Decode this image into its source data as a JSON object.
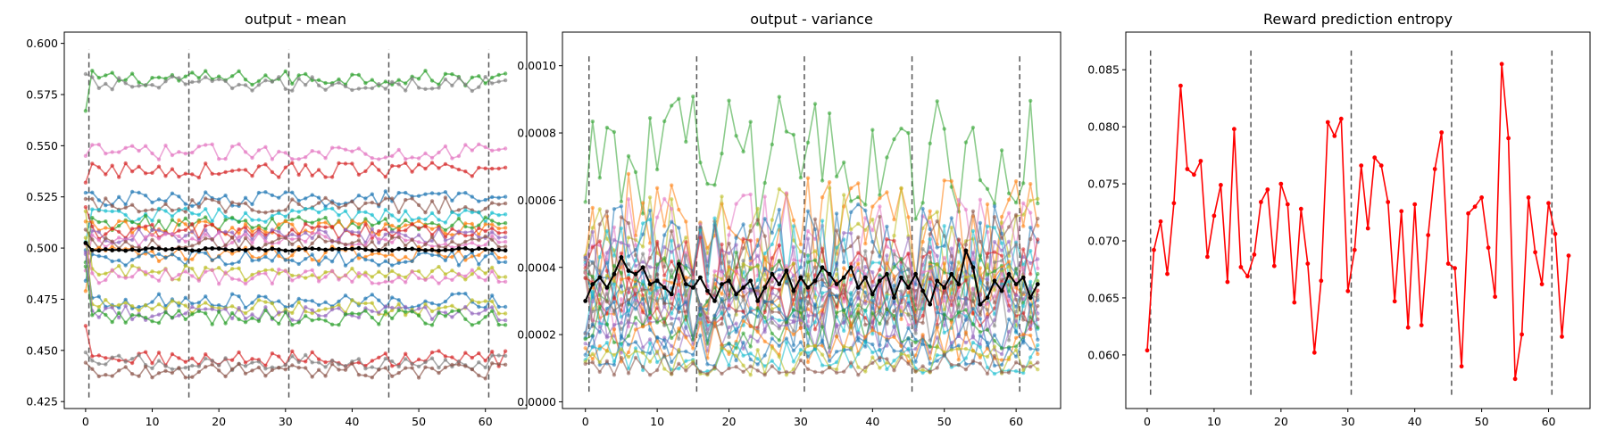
{
  "chart_data": [
    {
      "type": "line",
      "title": "output - mean",
      "xlim": [
        -3.2,
        66.2
      ],
      "ylim": [
        0.4216,
        0.6055
      ],
      "xticks": [
        0,
        10,
        20,
        30,
        40,
        50,
        60
      ],
      "xtick_labels": [
        "0",
        "10",
        "20",
        "30",
        "40",
        "50",
        "60"
      ],
      "yticks": [
        0.425,
        0.45,
        0.475,
        0.5,
        0.525,
        0.55,
        0.575,
        0.6
      ],
      "ytick_labels": [
        "0.425",
        "0.450",
        "0.475",
        "0.500",
        "0.525",
        "0.550",
        "0.575",
        "0.600"
      ],
      "vlines": [
        0.5,
        15.5,
        30.5,
        45.5,
        60.5
      ],
      "vline_range": [
        0.427,
        0.597
      ],
      "num_points": 64,
      "series_levels": [
        0.583,
        0.58,
        0.547,
        0.538,
        0.524,
        0.521,
        0.516,
        0.512,
        0.51,
        0.508,
        0.506,
        0.504,
        0.502,
        0.497,
        0.495,
        0.488,
        0.486,
        0.474,
        0.471,
        0.468,
        0.466,
        0.446,
        0.444,
        0.44
      ],
      "series_start": [
        0.567,
        0.585,
        0.545,
        0.532,
        0.527,
        0.524,
        0.503,
        0.493,
        0.513,
        0.52,
        0.497,
        0.489,
        0.509,
        0.479,
        0.484,
        0.518,
        0.502,
        0.499,
        0.505,
        0.498,
        0.491,
        0.462,
        0.449,
        0.444
      ],
      "series_colors": [
        "#2ca02c",
        "#7f7f7f",
        "#e377c2",
        "#d62728",
        "#1f77b4",
        "#8c564b",
        "#17becf",
        "#2ca02c",
        "#ff7f0e",
        "#d62728",
        "#9467bd",
        "#e377c2",
        "#8c564b",
        "#ff7f0e",
        "#1f77b4",
        "#bcbd22",
        "#e377c2",
        "#1f77b4",
        "#bcbd22",
        "#9467bd",
        "#2ca02c",
        "#d62728",
        "#7f7f7f",
        "#8c564b"
      ],
      "mean_level": 0.4993,
      "mean_color": "#000000"
    },
    {
      "type": "line",
      "title": "output - variance",
      "xlim": [
        -3.2,
        66.2
      ],
      "ylim": [
        -2e-05,
        0.0011
      ],
      "xticks": [
        0,
        10,
        20,
        30,
        40,
        50,
        60
      ],
      "xtick_labels": [
        "0",
        "10",
        "20",
        "30",
        "40",
        "50",
        "60"
      ],
      "yticks": [
        0,
        0.0002,
        0.0004,
        0.0006,
        0.0008,
        0.001
      ],
      "ytick_labels": [
        "0.0000",
        "0.0002",
        "0.0004",
        "0.0006",
        "0.0008",
        "0.0010"
      ],
      "vlines": [
        0.5,
        15.5,
        30.5,
        45.5,
        60.5
      ],
      "vline_range": [
        3e-05,
        0.00103
      ],
      "num_points": 64,
      "series_levels": [
        0.00072,
        0.00052,
        0.0005,
        0.00048,
        0.00046,
        0.00044,
        0.00042,
        0.0004,
        0.00038,
        0.00036,
        0.00035,
        0.00034,
        0.00033,
        0.00032,
        0.00031,
        0.0003,
        0.00029,
        0.00028,
        0.00027,
        0.00026,
        0.00024,
        0.00022,
        0.0002,
        0.00018,
        0.00015,
        0.00013,
        0.00012,
        0.00011
      ],
      "series_amplitudes": [
        0.00012,
        0.0001,
        9e-05,
        9e-05,
        8e-05,
        8e-05,
        8e-05,
        7e-05,
        7e-05,
        7e-05,
        6e-05,
        6e-05,
        6e-05,
        6e-05,
        6e-05,
        5e-05,
        5e-05,
        5e-05,
        5e-05,
        5e-05,
        5e-05,
        4e-05,
        4e-05,
        4e-05,
        3e-05,
        3e-05,
        3e-05,
        2e-05
      ],
      "series_colors": [
        "#2ca02c",
        "#ff7f0e",
        "#bcbd22",
        "#e377c2",
        "#1f77b4",
        "#8c564b",
        "#17becf",
        "#9467bd",
        "#d62728",
        "#7f7f7f",
        "#2ca02c",
        "#ff7f0e",
        "#1f77b4",
        "#bcbd22",
        "#e377c2",
        "#8c564b",
        "#d62728",
        "#17becf",
        "#9467bd",
        "#7f7f7f",
        "#1f77b4",
        "#2ca02c",
        "#9467bd",
        "#ff7f0e",
        "#1f77b4",
        "#17becf",
        "#bcbd22",
        "#8c564b"
      ],
      "mean_values": [
        0.0003,
        0.00035,
        0.00037,
        0.00034,
        0.00038,
        0.00043,
        0.00039,
        0.00038,
        0.0004,
        0.00035,
        0.00036,
        0.00034,
        0.00032,
        0.00041,
        0.00035,
        0.00034,
        0.00037,
        0.00033,
        0.0003,
        0.00035,
        0.00036,
        0.00032,
        0.00034,
        0.00036,
        0.0003,
        0.00034,
        0.00038,
        0.00035,
        0.00039,
        0.00033,
        0.00037,
        0.00034,
        0.00036,
        0.0004,
        0.00038,
        0.00035,
        0.00037,
        0.0004,
        0.00034,
        0.00037,
        0.00032,
        0.00036,
        0.00038,
        0.00031,
        0.00037,
        0.00034,
        0.00038,
        0.00033,
        0.00029,
        0.00036,
        0.00034,
        0.00038,
        0.00035,
        0.00045,
        0.0004,
        0.00029,
        0.00031,
        0.00036,
        0.00033,
        0.00038,
        0.00035,
        0.00037,
        0.00031,
        0.00035
      ],
      "mean_color": "#000000"
    },
    {
      "type": "line",
      "title": "Reward prediction entropy",
      "xlim": [
        -3.2,
        66.2
      ],
      "ylim": [
        0.0553,
        0.0883
      ],
      "xticks": [
        0,
        10,
        20,
        30,
        40,
        50,
        60
      ],
      "xtick_labels": [
        "0",
        "10",
        "20",
        "30",
        "40",
        "50",
        "60"
      ],
      "yticks": [
        0.06,
        0.065,
        0.07,
        0.075,
        0.08,
        0.085
      ],
      "ytick_labels": [
        "0.060",
        "0.065",
        "0.070",
        "0.075",
        "0.080",
        "0.085"
      ],
      "vlines": [
        0.5,
        15.5,
        30.5,
        45.5,
        60.5
      ],
      "vline_range": [
        0.0565,
        0.0867
      ],
      "series": [
        {
          "color": "#ff0000",
          "x": [
            0,
            1,
            2,
            3,
            4,
            5,
            6,
            7,
            8,
            9,
            10,
            11,
            12,
            13,
            14,
            15,
            16,
            17,
            18,
            19,
            20,
            21,
            22,
            23,
            24,
            25,
            26,
            27,
            28,
            29,
            30,
            31,
            32,
            33,
            34,
            35,
            36,
            37,
            38,
            39,
            40,
            41,
            42,
            43,
            44,
            45,
            46,
            47,
            48,
            49,
            50,
            51,
            52,
            53,
            54,
            55,
            56,
            57,
            58,
            59,
            60,
            61,
            62,
            63
          ],
          "values": [
            0.0604,
            0.0692,
            0.0717,
            0.0671,
            0.0733,
            0.0836,
            0.0763,
            0.0758,
            0.077,
            0.0686,
            0.0722,
            0.0749,
            0.0664,
            0.0798,
            0.0677,
            0.0669,
            0.0688,
            0.0734,
            0.0745,
            0.0678,
            0.075,
            0.0732,
            0.0646,
            0.0728,
            0.068,
            0.0602,
            0.0665,
            0.0804,
            0.0792,
            0.0807,
            0.0656,
            0.0692,
            0.0766,
            0.0711,
            0.0773,
            0.0766,
            0.0734,
            0.0647,
            0.0726,
            0.0624,
            0.0732,
            0.0626,
            0.0705,
            0.0763,
            0.0795,
            0.068,
            0.0676,
            0.059,
            0.0724,
            0.073,
            0.0738,
            0.0694,
            0.0651,
            0.0855,
            0.079,
            0.0579,
            0.0618,
            0.0738,
            0.069,
            0.0662,
            0.0733,
            0.0706,
            0.0616,
            0.0687
          ]
        }
      ]
    }
  ]
}
